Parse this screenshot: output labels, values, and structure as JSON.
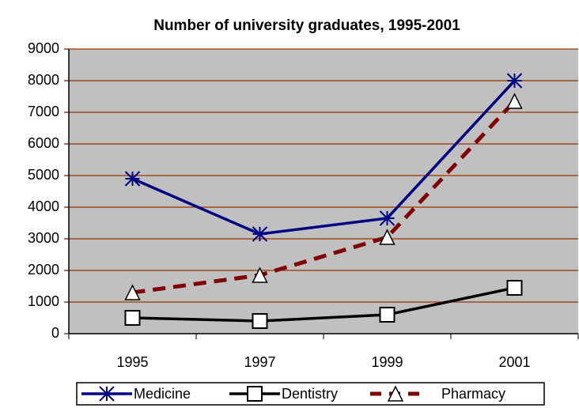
{
  "chart_data": {
    "type": "line",
    "title": "Number of university graduates, 1995-2001",
    "categories": [
      "1995",
      "1997",
      "1999",
      "2001"
    ],
    "series": [
      {
        "name": "Medicine",
        "color": "#000080",
        "marker": "asterisk",
        "dash": false,
        "values": [
          4900,
          3150,
          3650,
          8000
        ]
      },
      {
        "name": "Dentistry",
        "color": "#000000",
        "marker": "square",
        "dash": false,
        "values": [
          500,
          400,
          600,
          1450
        ]
      },
      {
        "name": "Pharmacy",
        "color": "#800000",
        "marker": "triangle",
        "dash": true,
        "values": [
          1300,
          1850,
          3050,
          7350
        ]
      }
    ],
    "ylim": [
      0,
      9000
    ],
    "yticks": [
      0,
      1000,
      2000,
      3000,
      4000,
      5000,
      6000,
      7000,
      8000,
      9000
    ],
    "grid": true,
    "legend": "bottom"
  }
}
